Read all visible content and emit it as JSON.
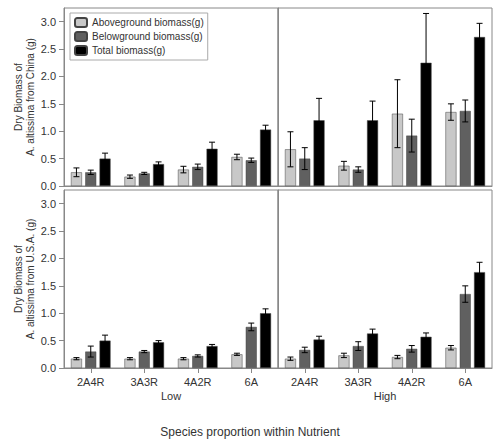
{
  "chart_data": {
    "type": "bar",
    "xlabel": "Species proportion within Nutrient",
    "categories": [
      "2A4R",
      "3A3R",
      "4A2R",
      "6A"
    ],
    "groups": [
      "Low",
      "High"
    ],
    "ylim": [
      0,
      3.25
    ],
    "yticks": [
      {
        "value": 0,
        "label": "0.0"
      },
      {
        "value": 0.5,
        "label": "0.5"
      },
      {
        "value": 1,
        "label": "1.0"
      },
      {
        "value": 1.5,
        "label": "1.5"
      },
      {
        "value": 2,
        "label": "2.0"
      },
      {
        "value": 2.5,
        "label": "2.5"
      },
      {
        "value": 3,
        "label": "3.0"
      }
    ],
    "grid": false,
    "legend": "upper left",
    "rows": [
      {
        "ylabel": "Dry Biomass of\nA. altissima from China (g)",
        "panels": [
          {
            "series": [
              {
                "name": "Aboveground biomass(g)",
                "color": "#c8c8c8",
                "values": [
                  0.25,
                  0.17,
                  0.3,
                  0.53
                ],
                "errors": [
                  0.08,
                  0.03,
                  0.06,
                  0.05
                ]
              },
              {
                "name": "Belowground biomass(g)",
                "color": "#606060",
                "values": [
                  0.25,
                  0.23,
                  0.35,
                  0.47
                ],
                "errors": [
                  0.04,
                  0.02,
                  0.05,
                  0.04
                ]
              },
              {
                "name": "Total biomass(g)",
                "color": "#000000",
                "values": [
                  0.5,
                  0.4,
                  0.68,
                  1.03
                ],
                "errors": [
                  0.1,
                  0.04,
                  0.12,
                  0.08
                ]
              }
            ]
          },
          {
            "series": [
              {
                "name": "Aboveground biomass(g)",
                "color": "#c8c8c8",
                "values": [
                  0.67,
                  0.37,
                  1.32,
                  1.35
                ],
                "errors": [
                  0.32,
                  0.08,
                  0.62,
                  0.15
                ]
              },
              {
                "name": "Belowground biomass(g)",
                "color": "#606060",
                "values": [
                  0.5,
                  0.3,
                  0.92,
                  1.37
                ],
                "errors": [
                  0.2,
                  0.05,
                  0.3,
                  0.2
                ]
              },
              {
                "name": "Total biomass(g)",
                "color": "#000000",
                "values": [
                  1.2,
                  1.2,
                  2.25,
                  2.72
                ],
                "errors": [
                  0.4,
                  0.35,
                  0.9,
                  0.25
                ]
              }
            ]
          }
        ]
      },
      {
        "ylabel": "Dry Biomass of\nA. altissima from U.S.A. (g)",
        "panels": [
          {
            "series": [
              {
                "name": "Aboveground biomass(g)",
                "color": "#c8c8c8",
                "values": [
                  0.17,
                  0.17,
                  0.17,
                  0.25
                ],
                "errors": [
                  0.02,
                  0.02,
                  0.02,
                  0.02
                ]
              },
              {
                "name": "Belowground biomass(g)",
                "color": "#606060",
                "values": [
                  0.3,
                  0.3,
                  0.22,
                  0.75
                ],
                "errors": [
                  0.1,
                  0.02,
                  0.02,
                  0.07
                ]
              },
              {
                "name": "Total biomass(g)",
                "color": "#000000",
                "values": [
                  0.5,
                  0.47,
                  0.4,
                  1.0
                ],
                "errors": [
                  0.1,
                  0.03,
                  0.03,
                  0.08
                ]
              }
            ]
          },
          {
            "series": [
              {
                "name": "Aboveground biomass(g)",
                "color": "#c8c8c8",
                "values": [
                  0.17,
                  0.23,
                  0.2,
                  0.37
                ],
                "errors": [
                  0.03,
                  0.04,
                  0.03,
                  0.04
                ]
              },
              {
                "name": "Belowground biomass(g)",
                "color": "#606060",
                "values": [
                  0.33,
                  0.4,
                  0.35,
                  1.35
                ],
                "errors": [
                  0.05,
                  0.08,
                  0.06,
                  0.15
                ]
              },
              {
                "name": "Total biomass(g)",
                "color": "#000000",
                "values": [
                  0.52,
                  0.63,
                  0.57,
                  1.75
                ],
                "errors": [
                  0.06,
                  0.08,
                  0.07,
                  0.18
                ]
              }
            ]
          }
        ]
      }
    ]
  }
}
